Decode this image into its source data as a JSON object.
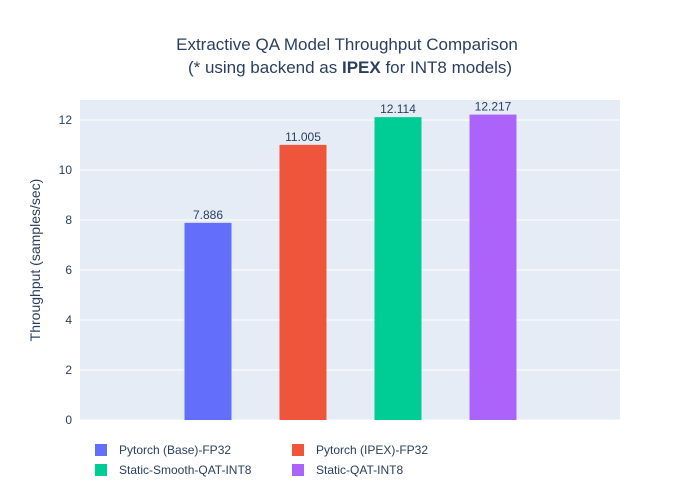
{
  "chart_data": {
    "type": "bar",
    "title_line1": "Extractive QA Model Throughput Comparison",
    "title_line2_pre": "(* using backend as ",
    "title_line2_bold": "IPEX",
    "title_line2_post": " for INT8 models)",
    "xlabel": "",
    "ylabel": "Throughput (samples/sec)",
    "ylim": [
      0,
      12.8
    ],
    "yticks": [
      0,
      2,
      4,
      6,
      8,
      10,
      12
    ],
    "grid": true,
    "legend_position": "bottom-left",
    "plot_background": "#e5ecf6",
    "series": [
      {
        "name": "Pytorch (Base)-FP32",
        "value": 7.886,
        "label": "7.886",
        "color": "#636efa"
      },
      {
        "name": "Pytorch (IPEX)-FP32",
        "value": 11.005,
        "label": "11.005",
        "color": "#ef553b"
      },
      {
        "name": "Static-Smooth-QAT-INT8",
        "value": 12.114,
        "label": "12.114",
        "color": "#00cc96"
      },
      {
        "name": "Static-QAT-INT8",
        "value": 12.217,
        "label": "12.217",
        "color": "#ab63fa"
      }
    ]
  }
}
